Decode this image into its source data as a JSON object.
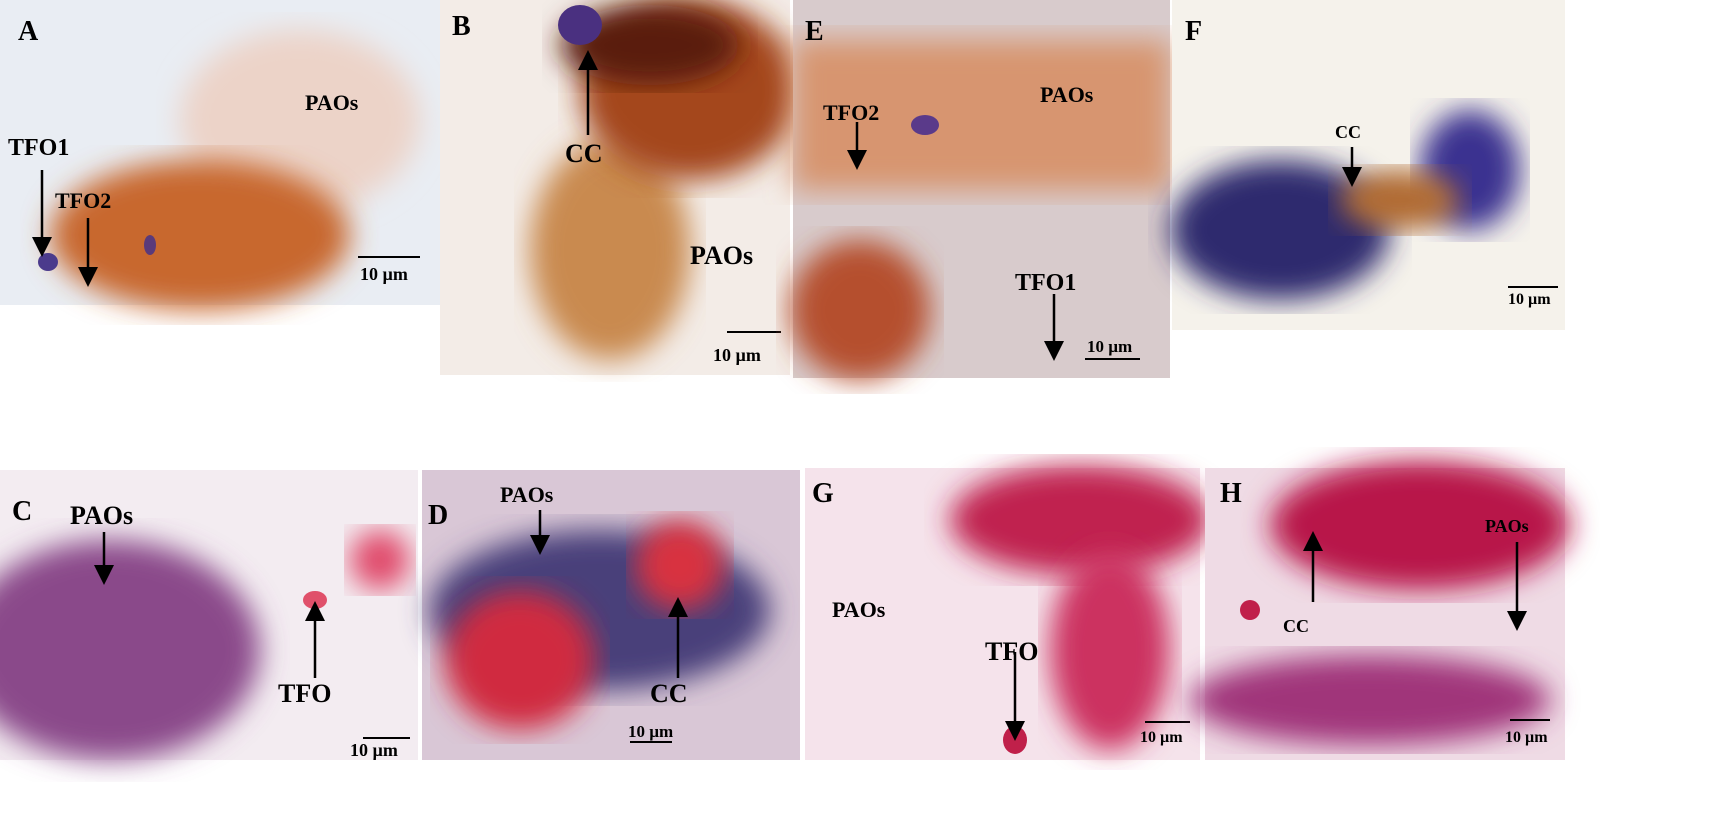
{
  "panels": [
    {
      "letter": "A",
      "labels": [
        "PAOs",
        "TFO1",
        "TFO2"
      ],
      "scale_bar": "10 µm"
    },
    {
      "letter": "B",
      "labels": [
        "CC",
        "PAOs"
      ],
      "scale_bar": "10 µm"
    },
    {
      "letter": "E",
      "labels": [
        "TFO2",
        "PAOs",
        "TFO1"
      ],
      "scale_bar": "10 µm"
    },
    {
      "letter": "F",
      "labels": [
        "CC"
      ],
      "scale_bar": "10 µm"
    },
    {
      "letter": "C",
      "labels": [
        "PAOs",
        "TFO"
      ],
      "scale_bar": "10 µm"
    },
    {
      "letter": "D",
      "labels": [
        "PAOs",
        "CC"
      ],
      "scale_bar": "10 µm"
    },
    {
      "letter": "G",
      "labels": [
        "PAOs",
        "TFO"
      ],
      "scale_bar": "10 µm"
    },
    {
      "letter": "H",
      "labels": [
        "CC",
        "PAOs"
      ],
      "scale_bar": "10 µm"
    }
  ]
}
